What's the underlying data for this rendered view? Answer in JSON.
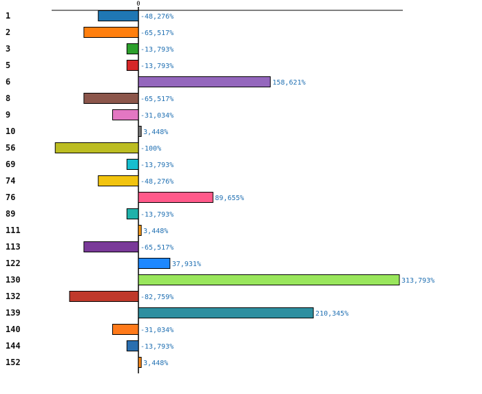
{
  "chart_data": {
    "type": "bar",
    "orientation": "horizontal",
    "title": "",
    "xlabel": "",
    "ylabel": "",
    "zero_tick_label": "0",
    "xlim": [
      -100,
      313.793
    ],
    "grid": false,
    "legend": "none",
    "categories": [
      "1",
      "2",
      "3",
      "5",
      "6",
      "8",
      "9",
      "10",
      "56",
      "69",
      "74",
      "76",
      "89",
      "111",
      "113",
      "122",
      "130",
      "132",
      "139",
      "140",
      "144",
      "152"
    ],
    "values": [
      -48.276,
      -65.517,
      -13.793,
      -13.793,
      158.621,
      -65.517,
      -31.034,
      3.448,
      -100,
      -13.793,
      -48.276,
      89.655,
      -13.793,
      3.448,
      -65.517,
      37.931,
      313.793,
      -82.759,
      210.345,
      -31.034,
      -13.793,
      3.448
    ],
    "value_labels": [
      "-48,276%",
      "-65,517%",
      "-13,793%",
      "-13,793%",
      "158,621%",
      "-65,517%",
      "-31,034%",
      "3,448%",
      "-100%",
      "-13,793%",
      "-48,276%",
      "89,655%",
      "-13,793%",
      "3,448%",
      "-65,517%",
      "37,931%",
      "313,793%",
      "-82,759%",
      "210,345%",
      "-31,034%",
      "-13,793%",
      "3,448%"
    ],
    "colors": [
      "#1f77b4",
      "#ff7f0e",
      "#2ca02c",
      "#d62728",
      "#9467bd",
      "#8c564b",
      "#e377c2",
      "#7f7f7f",
      "#bcbd22",
      "#17becf",
      "#f2c40f",
      "#ff5a8a",
      "#20b2aa",
      "#ff9f1a",
      "#7a3a99",
      "#1e88ff",
      "#99e65c",
      "#c0392b",
      "#2e8fa0",
      "#ff7a1a",
      "#2a6fb0",
      "#ff8c1a"
    ]
  }
}
